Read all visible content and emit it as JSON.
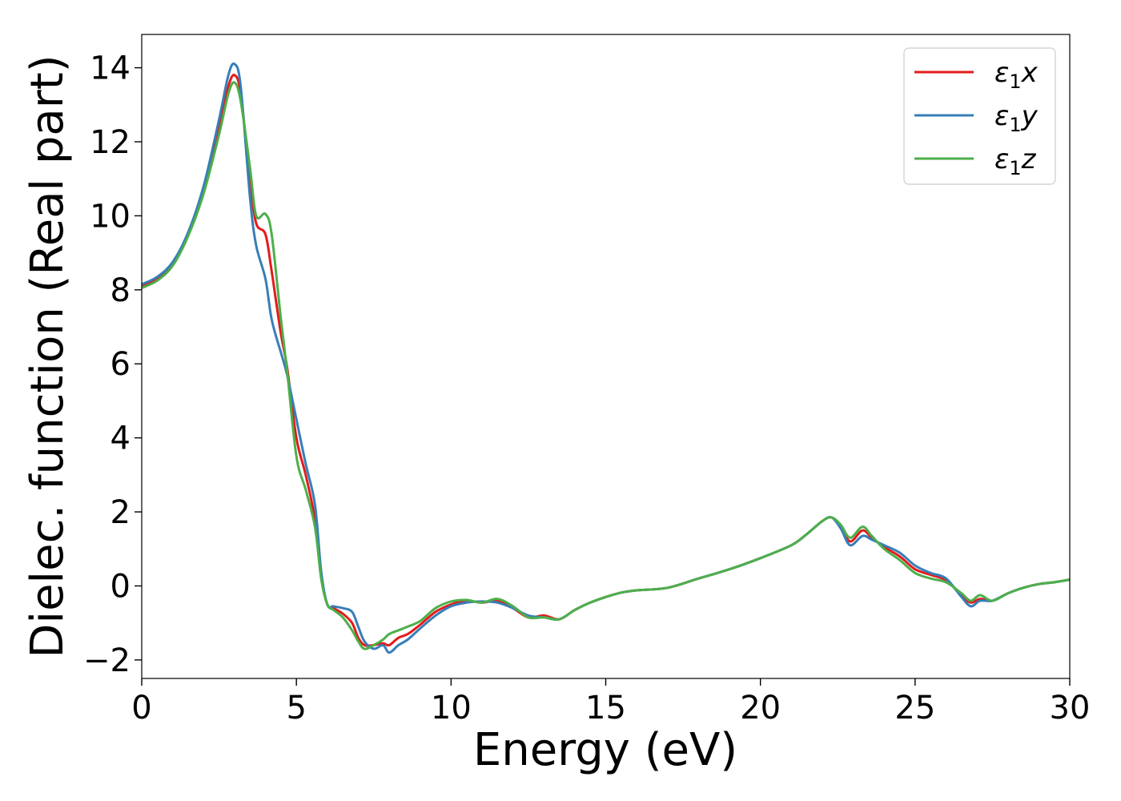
{
  "chart_data": {
    "type": "line",
    "title": "",
    "xlabel": "Energy (eV)",
    "ylabel": "Dielec. function (Real part)",
    "xlim": [
      0,
      30
    ],
    "ylim": [
      -2.5,
      14.9
    ],
    "xticks": [
      0,
      5,
      10,
      15,
      20,
      25,
      30
    ],
    "xtick_labels": [
      "0",
      "5",
      "10",
      "15",
      "20",
      "25",
      "30"
    ],
    "yticks": [
      -2,
      0,
      2,
      4,
      6,
      8,
      10,
      12,
      14
    ],
    "ytick_labels": [
      "−2",
      "0",
      "2",
      "4",
      "6",
      "8",
      "10",
      "12",
      "14"
    ],
    "grid": false,
    "legend": "top-right",
    "series": [
      {
        "name": "ε₁x",
        "label_symbol": "ε",
        "label_sub": "1",
        "label_var": "x",
        "color": "#e41a1c",
        "x": [
          0,
          0.5,
          1,
          1.5,
          2,
          2.5,
          2.8,
          3,
          3.2,
          3.5,
          3.7,
          4,
          4.2,
          4.5,
          4.7,
          5,
          5.3,
          5.6,
          5.8,
          6,
          6.2,
          6.5,
          6.8,
          7,
          7.2,
          7.5,
          7.8,
          8,
          8.3,
          8.6,
          9,
          9.5,
          10,
          10.5,
          11,
          11.5,
          12,
          12.5,
          13,
          13.5,
          14,
          14.5,
          15,
          15.5,
          16,
          17,
          18,
          19,
          20,
          21,
          21.5,
          22,
          22.3,
          22.6,
          22.9,
          23.3,
          23.6,
          24,
          24.5,
          25,
          25.5,
          26,
          26.5,
          26.8,
          27.1,
          27.5,
          28,
          28.5,
          29,
          29.5,
          30
        ],
        "y": [
          8.1,
          8.3,
          8.7,
          9.5,
          10.7,
          12.4,
          13.5,
          13.8,
          13.3,
          11,
          9.8,
          9.5,
          8.5,
          6.8,
          5.9,
          4,
          3,
          1.8,
          0.3,
          -0.5,
          -0.6,
          -0.75,
          -1,
          -1.4,
          -1.6,
          -1.6,
          -1.55,
          -1.6,
          -1.4,
          -1.3,
          -1.05,
          -0.7,
          -0.5,
          -0.4,
          -0.45,
          -0.4,
          -0.6,
          -0.85,
          -0.8,
          -0.9,
          -0.65,
          -0.45,
          -0.3,
          -0.18,
          -0.12,
          -0.05,
          0.2,
          0.45,
          0.75,
          1.1,
          1.4,
          1.75,
          1.85,
          1.6,
          1.2,
          1.5,
          1.3,
          1.05,
          0.8,
          0.45,
          0.3,
          0.15,
          -0.25,
          -0.45,
          -0.35,
          -0.4,
          -0.2,
          -0.05,
          0.05,
          0.1,
          0.17
        ]
      },
      {
        "name": "ε₁y",
        "label_symbol": "ε",
        "label_sub": "1",
        "label_var": "y",
        "color": "#377eb8",
        "x": [
          0,
          0.5,
          1,
          1.5,
          2,
          2.5,
          2.8,
          3,
          3.2,
          3.5,
          3.7,
          4,
          4.2,
          4.5,
          4.7,
          5,
          5.3,
          5.6,
          5.8,
          6,
          6.2,
          6.5,
          6.8,
          7,
          7.2,
          7.5,
          7.8,
          8,
          8.3,
          8.6,
          9,
          9.5,
          10,
          10.5,
          11,
          11.5,
          12,
          12.5,
          13,
          13.5,
          14,
          14.5,
          15,
          15.5,
          16,
          17,
          18,
          19,
          20,
          21,
          21.5,
          22,
          22.3,
          22.6,
          22.9,
          23.3,
          23.6,
          24,
          24.5,
          25,
          25.5,
          26,
          26.5,
          26.8,
          27.1,
          27.5,
          28,
          28.5,
          29,
          29.5,
          30
        ],
        "y": [
          8.15,
          8.35,
          8.75,
          9.55,
          10.8,
          12.6,
          13.8,
          14.1,
          13.5,
          10.5,
          9.2,
          8.3,
          7.2,
          6.3,
          5.7,
          4.5,
          3.3,
          2.2,
          0.4,
          -0.5,
          -0.55,
          -0.6,
          -0.7,
          -1.1,
          -1.5,
          -1.7,
          -1.6,
          -1.8,
          -1.6,
          -1.45,
          -1.15,
          -0.8,
          -0.55,
          -0.45,
          -0.42,
          -0.45,
          -0.6,
          -0.8,
          -0.85,
          -0.9,
          -0.65,
          -0.45,
          -0.3,
          -0.18,
          -0.12,
          -0.05,
          0.2,
          0.45,
          0.75,
          1.1,
          1.4,
          1.75,
          1.85,
          1.55,
          1.1,
          1.35,
          1.25,
          1.1,
          0.9,
          0.55,
          0.35,
          0.2,
          -0.3,
          -0.55,
          -0.4,
          -0.4,
          -0.2,
          -0.05,
          0.05,
          0.1,
          0.17
        ]
      },
      {
        "name": "ε₁z",
        "label_symbol": "ε",
        "label_sub": "1",
        "label_var": "z",
        "color": "#4daf4a",
        "x": [
          0,
          0.5,
          1,
          1.5,
          2,
          2.5,
          2.8,
          3,
          3.2,
          3.5,
          3.7,
          4,
          4.2,
          4.5,
          4.7,
          5,
          5.3,
          5.6,
          5.8,
          6,
          6.2,
          6.5,
          6.8,
          7,
          7.2,
          7.5,
          7.8,
          8,
          8.3,
          8.6,
          9,
          9.5,
          10,
          10.5,
          11,
          11.5,
          12,
          12.5,
          13,
          13.5,
          14,
          14.5,
          15,
          15.5,
          16,
          17,
          18,
          19,
          20,
          21,
          21.5,
          22,
          22.3,
          22.6,
          22.9,
          23.3,
          23.6,
          24,
          24.5,
          25,
          25.5,
          26,
          26.5,
          26.8,
          27.1,
          27.5,
          28,
          28.5,
          29,
          29.5,
          30
        ],
        "y": [
          8.05,
          8.25,
          8.65,
          9.45,
          10.6,
          12.2,
          13.3,
          13.6,
          13.1,
          11.3,
          10,
          10.05,
          9.5,
          7.2,
          5.8,
          3.5,
          2.6,
          1.6,
          0.2,
          -0.5,
          -0.65,
          -0.85,
          -1.2,
          -1.5,
          -1.7,
          -1.6,
          -1.45,
          -1.3,
          -1.2,
          -1.1,
          -0.95,
          -0.6,
          -0.42,
          -0.38,
          -0.45,
          -0.35,
          -0.55,
          -0.85,
          -0.85,
          -0.9,
          -0.65,
          -0.45,
          -0.3,
          -0.18,
          -0.12,
          -0.05,
          0.2,
          0.45,
          0.75,
          1.1,
          1.4,
          1.75,
          1.85,
          1.65,
          1.3,
          1.6,
          1.35,
          1.0,
          0.7,
          0.35,
          0.2,
          0.1,
          -0.2,
          -0.4,
          -0.25,
          -0.4,
          -0.2,
          -0.05,
          0.05,
          0.1,
          0.17
        ]
      }
    ]
  }
}
